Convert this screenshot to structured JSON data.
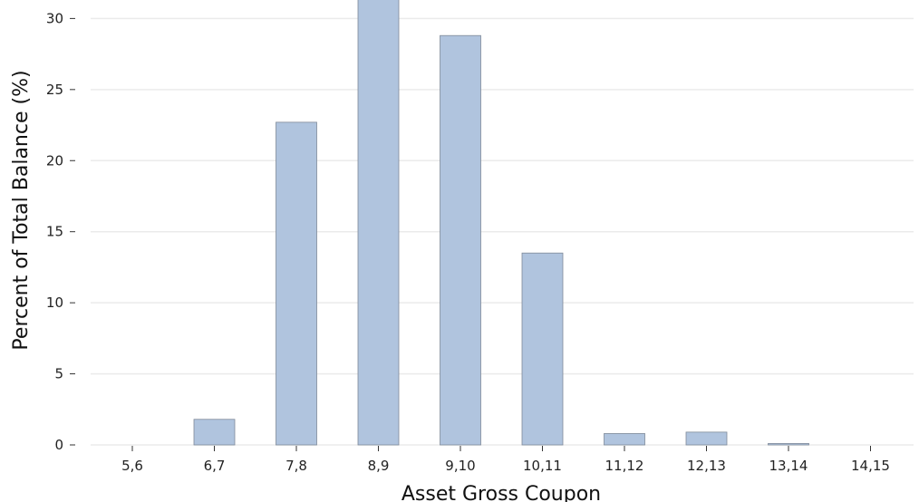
{
  "chart_data": {
    "type": "bar",
    "title": "",
    "xlabel": "Asset Gross Coupon",
    "ylabel": "Percent of Total Balance (%)",
    "categories": [
      "5,6",
      "6,7",
      "7,8",
      "8,9",
      "9,10",
      "10,11",
      "11,12",
      "12,13",
      "13,14",
      "14,15"
    ],
    "values": [
      0,
      1.8,
      22.7,
      31.6,
      28.8,
      13.5,
      0.8,
      0.9,
      0.1,
      0
    ],
    "ylim": [
      0,
      31.3
    ],
    "yticks": [
      0,
      5,
      10,
      15,
      20,
      25,
      30
    ],
    "grid": "horizontal",
    "bar_color": "#b0c4de",
    "bar_edge_color": "#7f8a99"
  }
}
